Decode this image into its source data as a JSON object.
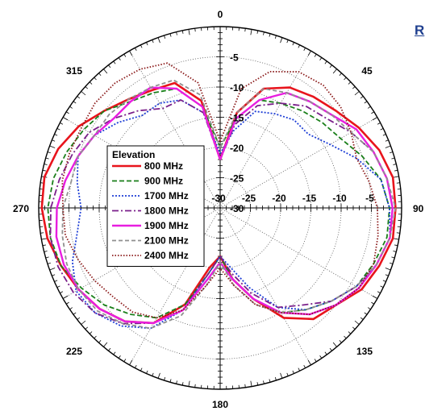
{
  "chart_data": {
    "type": "polar-line",
    "title": "",
    "cutoff_text": "R",
    "legend_title": "Elevation",
    "radial_axis": {
      "min": -30,
      "max": 0,
      "ticks": [
        -5,
        -10,
        -15,
        -20,
        -25,
        -30
      ],
      "grid_step": 5
    },
    "angle_labels": [
      "0",
      "45",
      "90",
      "135",
      "180",
      "225",
      "270",
      "315"
    ],
    "series": [
      {
        "name": "800 MHz",
        "color": "#e8141c",
        "dash": "",
        "width": 2.6,
        "points": [
          [
            0,
            -22
          ],
          [
            10,
            -14
          ],
          [
            20,
            -9
          ],
          [
            30,
            -7
          ],
          [
            40,
            -6
          ],
          [
            50,
            -5
          ],
          [
            60,
            -3.5
          ],
          [
            70,
            -2
          ],
          [
            80,
            -1
          ],
          [
            90,
            -1
          ],
          [
            100,
            -1
          ],
          [
            110,
            -2
          ],
          [
            120,
            -3
          ],
          [
            130,
            -5
          ],
          [
            140,
            -6
          ],
          [
            150,
            -9
          ],
          [
            160,
            -14
          ],
          [
            170,
            -18
          ],
          [
            180,
            -22
          ],
          [
            190,
            -20
          ],
          [
            200,
            -13
          ],
          [
            210,
            -8
          ],
          [
            220,
            -5.5
          ],
          [
            230,
            -4
          ],
          [
            240,
            -3
          ],
          [
            250,
            -2
          ],
          [
            260,
            -1
          ],
          [
            270,
            -0.5
          ],
          [
            280,
            -0.5
          ],
          [
            290,
            -1.5
          ],
          [
            300,
            -3
          ],
          [
            310,
            -5
          ],
          [
            320,
            -6.5
          ],
          [
            330,
            -7.5
          ],
          [
            340,
            -8
          ],
          [
            350,
            -12
          ],
          [
            360,
            -22
          ]
        ]
      },
      {
        "name": "900 MHz",
        "color": "#1a7f1a",
        "dash": "6,3",
        "width": 1.8,
        "points": [
          [
            0,
            -20
          ],
          [
            10,
            -15
          ],
          [
            20,
            -11
          ],
          [
            30,
            -10
          ],
          [
            40,
            -9
          ],
          [
            50,
            -8
          ],
          [
            60,
            -7
          ],
          [
            70,
            -5
          ],
          [
            80,
            -3
          ],
          [
            90,
            -2
          ],
          [
            100,
            -2
          ],
          [
            110,
            -3
          ],
          [
            120,
            -4
          ],
          [
            130,
            -6
          ],
          [
            140,
            -8
          ],
          [
            150,
            -10
          ],
          [
            160,
            -14
          ],
          [
            170,
            -18
          ],
          [
            180,
            -22
          ],
          [
            190,
            -19
          ],
          [
            200,
            -13
          ],
          [
            210,
            -9
          ],
          [
            220,
            -7
          ],
          [
            230,
            -5
          ],
          [
            240,
            -3.5
          ],
          [
            250,
            -2
          ],
          [
            260,
            -1.5
          ],
          [
            270,
            -1.5
          ],
          [
            280,
            -2
          ],
          [
            290,
            -3
          ],
          [
            300,
            -4
          ],
          [
            310,
            -5
          ],
          [
            320,
            -7
          ],
          [
            330,
            -8
          ],
          [
            340,
            -9
          ],
          [
            350,
            -13
          ],
          [
            360,
            -20
          ]
        ]
      },
      {
        "name": "1700 MHz",
        "color": "#1e3fd6",
        "dash": "2,2",
        "width": 1.8,
        "points": [
          [
            0,
            -21
          ],
          [
            10,
            -17
          ],
          [
            20,
            -13
          ],
          [
            30,
            -12
          ],
          [
            40,
            -11
          ],
          [
            50,
            -11
          ],
          [
            60,
            -9
          ],
          [
            70,
            -6
          ],
          [
            80,
            -3
          ],
          [
            90,
            -2
          ],
          [
            100,
            -1.5
          ],
          [
            110,
            -2.5
          ],
          [
            120,
            -4
          ],
          [
            130,
            -6
          ],
          [
            140,
            -8
          ],
          [
            150,
            -11
          ],
          [
            160,
            -16
          ],
          [
            170,
            -20
          ],
          [
            180,
            -22
          ],
          [
            190,
            -19
          ],
          [
            200,
            -12
          ],
          [
            210,
            -7
          ],
          [
            220,
            -4.5
          ],
          [
            230,
            -3
          ],
          [
            240,
            -2.5
          ],
          [
            250,
            -4
          ],
          [
            260,
            -6
          ],
          [
            270,
            -7
          ],
          [
            280,
            -6
          ],
          [
            290,
            -5
          ],
          [
            300,
            -6
          ],
          [
            310,
            -8
          ],
          [
            320,
            -10
          ],
          [
            330,
            -10
          ],
          [
            340,
            -11
          ],
          [
            350,
            -14
          ],
          [
            360,
            -21
          ]
        ]
      },
      {
        "name": "1800 MHz",
        "color": "#7a1f8a",
        "dash": "8,3,2,3",
        "width": 1.8,
        "points": [
          [
            0,
            -22
          ],
          [
            10,
            -16
          ],
          [
            20,
            -12
          ],
          [
            30,
            -10
          ],
          [
            40,
            -8
          ],
          [
            50,
            -7
          ],
          [
            60,
            -5
          ],
          [
            70,
            -3
          ],
          [
            80,
            -2
          ],
          [
            90,
            -1.5
          ],
          [
            100,
            -1.5
          ],
          [
            110,
            -2.5
          ],
          [
            120,
            -4
          ],
          [
            130,
            -6
          ],
          [
            140,
            -9
          ],
          [
            150,
            -11
          ],
          [
            160,
            -15
          ],
          [
            170,
            -19
          ],
          [
            180,
            -22
          ],
          [
            190,
            -19
          ],
          [
            200,
            -12
          ],
          [
            210,
            -8
          ],
          [
            220,
            -5
          ],
          [
            230,
            -3
          ],
          [
            240,
            -2
          ],
          [
            250,
            -1.5
          ],
          [
            260,
            -1.5
          ],
          [
            270,
            -2
          ],
          [
            280,
            -3
          ],
          [
            290,
            -4
          ],
          [
            300,
            -5
          ],
          [
            310,
            -7
          ],
          [
            320,
            -9
          ],
          [
            330,
            -11
          ],
          [
            340,
            -11
          ],
          [
            350,
            -14
          ],
          [
            360,
            -22
          ]
        ]
      },
      {
        "name": "1900 MHz",
        "color": "#e81ee0",
        "dash": "",
        "width": 2.4,
        "points": [
          [
            0,
            -22
          ],
          [
            10,
            -15
          ],
          [
            20,
            -11
          ],
          [
            30,
            -8
          ],
          [
            40,
            -7
          ],
          [
            50,
            -6
          ],
          [
            60,
            -4
          ],
          [
            70,
            -3
          ],
          [
            80,
            -2
          ],
          [
            90,
            -1.5
          ],
          [
            100,
            -1.5
          ],
          [
            110,
            -2.5
          ],
          [
            120,
            -3.5
          ],
          [
            130,
            -5
          ],
          [
            140,
            -7
          ],
          [
            150,
            -10
          ],
          [
            160,
            -14
          ],
          [
            170,
            -18
          ],
          [
            180,
            -21
          ],
          [
            190,
            -18
          ],
          [
            200,
            -12
          ],
          [
            210,
            -8
          ],
          [
            220,
            -5.5
          ],
          [
            230,
            -4
          ],
          [
            240,
            -3
          ],
          [
            250,
            -2.5
          ],
          [
            260,
            -2.5
          ],
          [
            270,
            -3
          ],
          [
            280,
            -4
          ],
          [
            290,
            -5
          ],
          [
            300,
            -6
          ],
          [
            310,
            -7
          ],
          [
            320,
            -7
          ],
          [
            330,
            -7
          ],
          [
            340,
            -9
          ],
          [
            350,
            -13
          ],
          [
            360,
            -22
          ]
        ]
      },
      {
        "name": "2100 MHz",
        "color": "#909090",
        "dash": "5,3",
        "width": 1.8,
        "points": [
          [
            0,
            -20
          ],
          [
            10,
            -14
          ],
          [
            20,
            -9
          ],
          [
            30,
            -8
          ],
          [
            40,
            -7
          ],
          [
            50,
            -6
          ],
          [
            60,
            -5
          ],
          [
            70,
            -3
          ],
          [
            80,
            -2
          ],
          [
            90,
            -1
          ],
          [
            100,
            -1.5
          ],
          [
            110,
            -2.5
          ],
          [
            120,
            -4
          ],
          [
            130,
            -6
          ],
          [
            140,
            -8
          ],
          [
            150,
            -10
          ],
          [
            160,
            -13
          ],
          [
            170,
            -17
          ],
          [
            180,
            -21
          ],
          [
            190,
            -17
          ],
          [
            200,
            -11
          ],
          [
            210,
            -7
          ],
          [
            220,
            -5
          ],
          [
            230,
            -3.5
          ],
          [
            240,
            -3
          ],
          [
            250,
            -3
          ],
          [
            260,
            -3.5
          ],
          [
            270,
            -4
          ],
          [
            280,
            -5
          ],
          [
            290,
            -5
          ],
          [
            300,
            -6
          ],
          [
            310,
            -6
          ],
          [
            320,
            -6.5
          ],
          [
            330,
            -7
          ],
          [
            340,
            -7.5
          ],
          [
            350,
            -11
          ],
          [
            360,
            -20
          ]
        ]
      },
      {
        "name": "2400 MHz",
        "color": "#8b1a1a",
        "dash": "1.5,2",
        "width": 1.8,
        "points": [
          [
            0,
            -19
          ],
          [
            10,
            -10
          ],
          [
            20,
            -6
          ],
          [
            30,
            -4
          ],
          [
            40,
            -3.5
          ],
          [
            50,
            -4
          ],
          [
            60,
            -5
          ],
          [
            70,
            -6
          ],
          [
            80,
            -5
          ],
          [
            90,
            -4
          ],
          [
            100,
            -3.5
          ],
          [
            110,
            -3
          ],
          [
            120,
            -3.5
          ],
          [
            130,
            -5
          ],
          [
            140,
            -7
          ],
          [
            150,
            -10
          ],
          [
            160,
            -13
          ],
          [
            170,
            -17
          ],
          [
            180,
            -20
          ],
          [
            190,
            -17
          ],
          [
            200,
            -12
          ],
          [
            210,
            -9
          ],
          [
            220,
            -7.5
          ],
          [
            230,
            -7
          ],
          [
            240,
            -6
          ],
          [
            250,
            -5
          ],
          [
            260,
            -4
          ],
          [
            270,
            -4
          ],
          [
            280,
            -3.5
          ],
          [
            290,
            -3.5
          ],
          [
            300,
            -3.5
          ],
          [
            310,
            -3
          ],
          [
            320,
            -3
          ],
          [
            330,
            -3.5
          ],
          [
            340,
            -4.5
          ],
          [
            350,
            -9
          ],
          [
            360,
            -19
          ]
        ]
      }
    ]
  }
}
